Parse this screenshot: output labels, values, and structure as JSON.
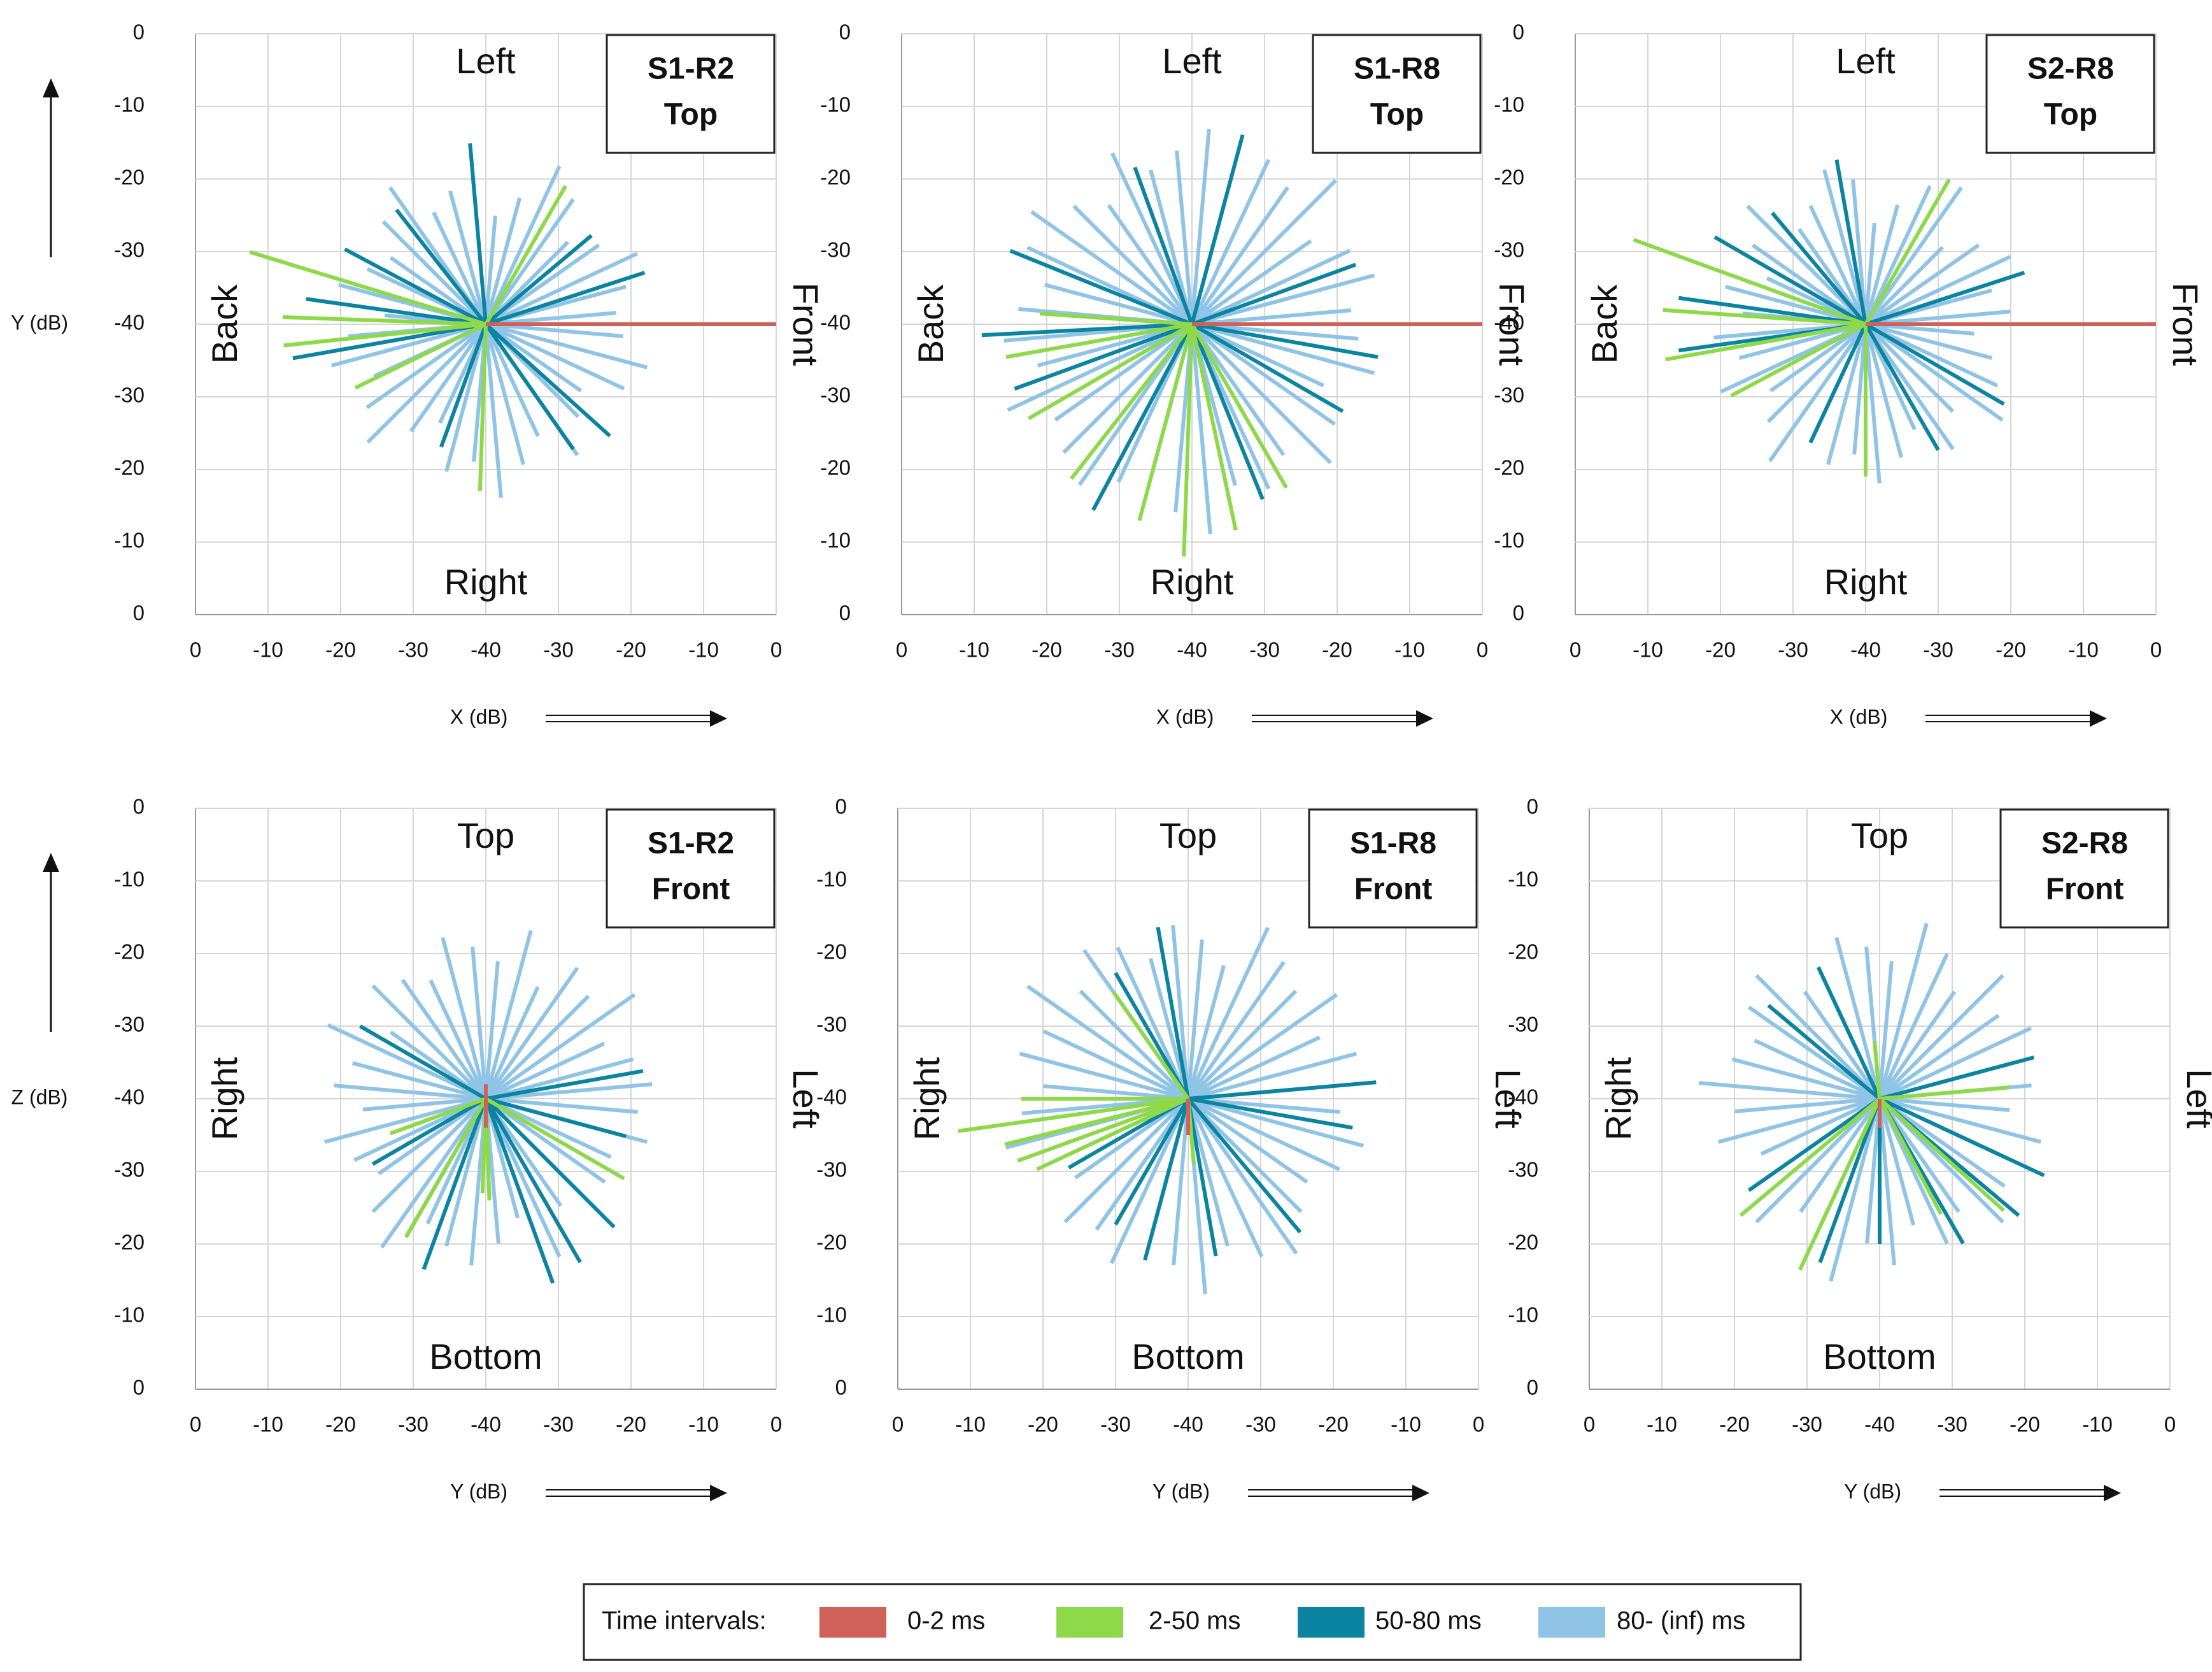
{
  "legend": {
    "title": "Time intervals:",
    "items": [
      {
        "name": "0-2 ms",
        "color": "#d0605a"
      },
      {
        "name": "2-50 ms",
        "color": "#8ed94a"
      },
      {
        "name": "50-80 ms",
        "color": "#0b84a2"
      },
      {
        "name": "80- (inf) ms",
        "color": "#8fc4e6"
      }
    ]
  },
  "chart_data": [
    {
      "type": "ray",
      "box": [
        "S1-R2",
        "Top"
      ],
      "labels": {
        "top": "Left",
        "bottom": "Right",
        "left": "Back",
        "right": "Front"
      },
      "xlabel": "X (dB)",
      "ylabel": "Y (dB)",
      "xticks": [
        0,
        -10,
        -20,
        -30,
        -40,
        -30,
        -20,
        -10,
        0
      ],
      "yticks": [
        0,
        -10,
        -20,
        -30,
        -40,
        -30,
        -20,
        -10,
        0
      ],
      "series": [
        {
          "angles": [
            0
          ],
          "levels": [
            0
          ]
        },
        {
          "angles": [
            60,
            163,
            178,
            186,
            206,
            268
          ],
          "levels": [
            -18,
            -6,
            -12,
            -12,
            -20,
            -17
          ]
        },
        {
          "angles": [
            18,
            95,
            128,
            152,
            172,
            190,
            305,
            318,
            250,
            40
          ],
          "levels": [
            -17,
            -15,
            -20,
            -18,
            -15,
            -13,
            -19,
            -17,
            -22,
            -21
          ]
        },
        {
          "angles": [
            5,
            15,
            25,
            35,
            45,
            55,
            65,
            75,
            85,
            95,
            105,
            115,
            125,
            135,
            145,
            155,
            165,
            175,
            185,
            195,
            205,
            215,
            225,
            235,
            245,
            255,
            265,
            275,
            285,
            295,
            305,
            315,
            325,
            335,
            345,
            355
          ],
          "levels": [
            -22,
            -20,
            -17,
            -21,
            -24,
            -19,
            -16,
            -22,
            -25,
            -18,
            -21,
            -23,
            -17,
            -20,
            -24,
            -22,
            -19,
            -26,
            -21,
            -18,
            -23,
            -20,
            -17,
            -22,
            -25,
            -19,
            -21,
            -16,
            -20,
            -23,
            -18,
            -22,
            -24,
            -19,
            -17,
            -21
          ]
        }
      ]
    },
    {
      "type": "ray",
      "box": [
        "S1-R8",
        "Top"
      ],
      "labels": {
        "top": "Left",
        "bottom": "Right",
        "left": "Back",
        "right": "Front"
      },
      "xlabel": "X (dB)",
      "xticks": [
        0,
        -10,
        -20,
        -30,
        -40,
        -30,
        -20,
        -10,
        0
      ],
      "yticks": [
        0,
        -10,
        -20,
        -30,
        -40,
        -30,
        -20,
        -10,
        0
      ],
      "series": [
        {
          "angles": [
            0
          ],
          "levels": [
            0
          ]
        },
        {
          "angles": [
            190,
            210,
            232,
            255,
            268,
            282,
            300,
            176
          ],
          "levels": [
            -14,
            -14,
            -13,
            -12,
            -8,
            -11,
            -14,
            -19
          ]
        },
        {
          "angles": [
            75,
            110,
            158,
            183,
            200,
            242,
            292,
            330,
            20,
            350
          ],
          "levels": [
            -13,
            -17,
            -13,
            -11,
            -14,
            -11,
            -14,
            -16,
            -16,
            -14
          ]
        },
        {
          "angles": [
            5,
            15,
            25,
            35,
            45,
            55,
            65,
            75,
            85,
            95,
            105,
            115,
            125,
            135,
            145,
            155,
            165,
            175,
            185,
            195,
            205,
            215,
            225,
            235,
            245,
            255,
            265,
            275,
            285,
            295,
            305,
            315,
            325,
            335,
            345,
            355
          ],
          "levels": [
            -18,
            -14,
            -16,
            -20,
            -12,
            -17,
            -15,
            -19,
            -13,
            -16,
            -18,
            -14,
            -20,
            -17,
            -13,
            -15,
            -19,
            -16,
            -14,
            -18,
            -12,
            -17,
            -15,
            -13,
            -16,
            -19,
            -14,
            -11,
            -17,
            -15,
            -18,
            -13,
            -16,
            -20,
            -14,
            -17
          ]
        }
      ]
    },
    {
      "type": "ray",
      "box": [
        "S2-R8",
        "Top"
      ],
      "labels": {
        "top": "Left",
        "bottom": "Right",
        "left": "Back",
        "right": "Front"
      },
      "xlabel": "X (dB)",
      "xticks": [
        0,
        -10,
        -20,
        -30,
        -40,
        -30,
        -20,
        -10,
        0
      ],
      "yticks": [
        0,
        -10,
        -20,
        -30,
        -40,
        -30,
        -20,
        -10,
        0
      ],
      "series": [
        {
          "angles": [
            0
          ],
          "levels": [
            0
          ]
        },
        {
          "angles": [
            60,
            160,
            176,
            190,
            208,
            270
          ],
          "levels": [
            -17,
            -6,
            -12,
            -12,
            -19,
            -19
          ]
        },
        {
          "angles": [
            18,
            100,
            130,
            150,
            172,
            188,
            300,
            330,
            245
          ],
          "levels": [
            -17,
            -17,
            -20,
            -16,
            -14,
            -14,
            -20,
            -18,
            -22
          ]
        },
        {
          "angles": [
            5,
            15,
            25,
            35,
            45,
            55,
            65,
            75,
            85,
            95,
            105,
            115,
            125,
            135,
            145,
            155,
            165,
            175,
            185,
            195,
            205,
            215,
            225,
            235,
            245,
            255,
            265,
            275,
            285,
            295,
            305,
            315,
            325,
            335,
            345,
            355
          ],
          "levels": [
            -20,
            -22,
            -18,
            -21,
            -25,
            -17,
            -19,
            -23,
            -26,
            -20,
            -18,
            -22,
            -24,
            -17,
            -21,
            -25,
            -20,
            -23,
            -19,
            -22,
            -18,
            -24,
            -21,
            -17,
            -23,
            -20,
            -22,
            -18,
            -21,
            -24,
            -19,
            -23,
            -17,
            -20,
            -22,
            -25
          ]
        }
      ]
    },
    {
      "type": "ray",
      "box": [
        "S1-R2",
        "Front"
      ],
      "labels": {
        "top": "Top",
        "bottom": "Bottom",
        "left": "Right",
        "right": "Left"
      },
      "xlabel": "Y (dB)",
      "ylabel": "Z (dB)",
      "xticks": [
        0,
        -10,
        -20,
        -30,
        -40,
        -30,
        -20,
        -10,
        0
      ],
      "yticks": [
        0,
        -10,
        -20,
        -30,
        -40,
        -30,
        -20,
        -10,
        0
      ],
      "series": [
        {
          "angles": [
            90,
            270
          ],
          "levels": [
            -38,
            -36
          ]
        },
        {
          "angles": [
            240,
            268,
            272,
            330,
            200
          ],
          "levels": [
            -18,
            -27,
            -26,
            -18,
            -26
          ]
        },
        {
          "angles": [
            150,
            210,
            240,
            250,
            290,
            300,
            315,
            345,
            10
          ],
          "levels": [
            -20,
            -22,
            -18,
            -15,
            -13,
            -14,
            -15,
            -20,
            -18
          ]
        },
        {
          "angles": [
            5,
            15,
            25,
            35,
            45,
            55,
            65,
            75,
            85,
            95,
            105,
            115,
            125,
            135,
            145,
            155,
            165,
            175,
            185,
            195,
            205,
            215,
            225,
            235,
            245,
            255,
            265,
            275,
            285,
            295,
            305,
            315,
            325,
            335,
            345,
            355
          ],
          "levels": [
            -17,
            -19,
            -22,
            -15,
            -20,
            -18,
            -23,
            -16,
            -21,
            -19,
            -17,
            -22,
            -20,
            -18,
            -24,
            -16,
            -21,
            -19,
            -23,
            -17,
            -20,
            -22,
            -18,
            -15,
            -21,
            -19,
            -17,
            -20,
            -23,
            -16,
            -22,
            -18,
            -20,
            -21,
            -17,
            -19
          ]
        }
      ]
    },
    {
      "type": "ray",
      "box": [
        "S1-R8",
        "Front"
      ],
      "labels": {
        "top": "Top",
        "bottom": "Bottom",
        "left": "Right",
        "right": "Left"
      },
      "xlabel": "Y (dB)",
      "xticks": [
        0,
        -10,
        -20,
        -30,
        -40,
        -30,
        -20,
        -10,
        0
      ],
      "yticks": [
        0,
        -10,
        -20,
        -30,
        -40,
        -30,
        -20,
        -10,
        0
      ],
      "series": [
        {
          "angles": [
            270
          ],
          "levels": [
            -35
          ]
        },
        {
          "angles": [
            180,
            188,
            194,
            200,
            205,
            125,
            275
          ],
          "levels": [
            -17,
            -8,
            -14,
            -15,
            -17,
            -22,
            -31
          ]
        },
        {
          "angles": [
            100,
            120,
            210,
            240,
            255,
            280,
            310,
            350,
            5
          ],
          "levels": [
            -16,
            -20,
            -21,
            -20,
            -17,
            -18,
            -16,
            -17,
            -14
          ]
        },
        {
          "angles": [
            5,
            15,
            25,
            35,
            45,
            55,
            65,
            75,
            85,
            95,
            105,
            115,
            125,
            135,
            145,
            155,
            165,
            175,
            185,
            195,
            205,
            215,
            225,
            235,
            245,
            255,
            265,
            275,
            285,
            295,
            305,
            315,
            325,
            335,
            345,
            355
          ],
          "levels": [
            -18,
            -16,
            -20,
            -15,
            -19,
            -17,
            -14,
            -21,
            -18,
            -16,
            -20,
            -17,
            -15,
            -19,
            -13,
            -18,
            -16,
            -20,
            -17,
            -14,
            -19,
            -21,
            -16,
            -18,
            -15,
            -20,
            -17,
            -13,
            -19,
            -16,
            -14,
            -18,
            -20,
            -17,
            -15,
            -19
          ]
        }
      ]
    },
    {
      "type": "ray",
      "box": [
        "S2-R8",
        "Front"
      ],
      "labels": {
        "top": "Top",
        "bottom": "Bottom",
        "left": "Right",
        "right": "Left"
      },
      "xlabel": "Y (dB)",
      "xticks": [
        0,
        -10,
        -20,
        -30,
        -40,
        -30,
        -20,
        -10,
        0
      ],
      "yticks": [
        0,
        -10,
        -20,
        -30,
        -40,
        -30,
        -20,
        -10,
        0
      ],
      "series": [
        {
          "angles": [
            270
          ],
          "levels": [
            -36
          ]
        },
        {
          "angles": [
            220,
            245,
            298,
            318,
            5,
            95
          ],
          "levels": [
            -15,
            -14,
            -22,
            -17,
            -22,
            -32
          ]
        },
        {
          "angles": [
            115,
            140,
            215,
            250,
            270,
            300,
            320,
            335,
            15
          ],
          "levels": [
            -20,
            -20,
            -18,
            -16,
            -20,
            -17,
            -15,
            -15,
            -18
          ]
        },
        {
          "angles": [
            5,
            15,
            25,
            35,
            45,
            55,
            65,
            75,
            85,
            95,
            105,
            115,
            125,
            135,
            145,
            155,
            165,
            175,
            185,
            195,
            205,
            215,
            225,
            235,
            245,
            255,
            265,
            275,
            285,
            295,
            305,
            315,
            325,
            335,
            345,
            355
          ],
          "levels": [
            -19,
            -21,
            -17,
            -20,
            -16,
            -22,
            -18,
            -15,
            -21,
            -19,
            -17,
            -20,
            -22,
            -16,
            -18,
            -21,
            -19,
            -15,
            -20,
            -17,
            -22,
            -18,
            -16,
            -21,
            -19,
            -14,
            -20,
            -17,
            -22,
            -18,
            -21,
            -16,
            -19,
            -20,
            -17,
            -22
          ]
        }
      ]
    }
  ]
}
